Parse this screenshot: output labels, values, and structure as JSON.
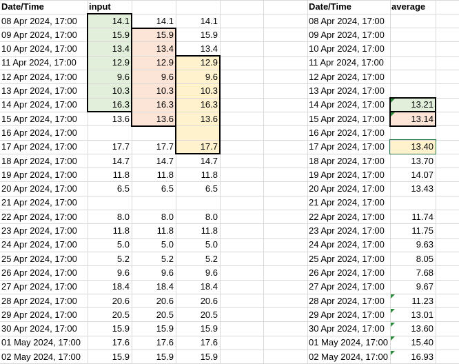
{
  "colors": {
    "green_fill": "#e2efda",
    "peach_fill": "#fce4d6",
    "yellow_fill": "#fff2cc",
    "selection_border": "#217346",
    "error_triangle": "#2e8b3d",
    "gridline": "#d9d9d9"
  },
  "headers": {
    "left_date": "Date/Time",
    "input": "input",
    "right_date": "Date/Time",
    "average": "average"
  },
  "rows": [
    {
      "date": "08 Apr 2024, 17:00",
      "a": "14.1",
      "b": "14.1",
      "c": "14.1",
      "avg": ""
    },
    {
      "date": "09 Apr 2024, 17:00",
      "a": "15.9",
      "b": "15.9",
      "c": "15.9",
      "avg": ""
    },
    {
      "date": "10 Apr 2024, 17:00",
      "a": "13.4",
      "b": "13.4",
      "c": "13.4",
      "avg": ""
    },
    {
      "date": "11 Apr 2024, 17:00",
      "a": "12.9",
      "b": "12.9",
      "c": "12.9",
      "avg": ""
    },
    {
      "date": "12 Apr 2024, 17:00",
      "a": "9.6",
      "b": "9.6",
      "c": "9.6",
      "avg": ""
    },
    {
      "date": "13 Apr 2024, 17:00",
      "a": "10.3",
      "b": "10.3",
      "c": "10.3",
      "avg": ""
    },
    {
      "date": "14 Apr 2024, 17:00",
      "a": "16.3",
      "b": "16.3",
      "c": "16.3",
      "avg": "13.21"
    },
    {
      "date": "15 Apr 2024, 17:00",
      "a": "13.6",
      "b": "13.6",
      "c": "13.6",
      "avg": "13.14"
    },
    {
      "date": "16 Apr 2024, 17:00",
      "a": "",
      "b": "",
      "c": "",
      "avg": ""
    },
    {
      "date": "17 Apr 2024, 17:00",
      "a": "17.7",
      "b": "17.7",
      "c": "17.7",
      "avg": "13.40"
    },
    {
      "date": "18 Apr 2024, 17:00",
      "a": "14.7",
      "b": "14.7",
      "c": "14.7",
      "avg": "13.70"
    },
    {
      "date": "19 Apr 2024, 17:00",
      "a": "11.8",
      "b": "11.8",
      "c": "11.8",
      "avg": "14.07"
    },
    {
      "date": "20 Apr 2024, 17:00",
      "a": "6.5",
      "b": "6.5",
      "c": "6.5",
      "avg": "13.43"
    },
    {
      "date": "21 Apr 2024, 17:00",
      "a": "",
      "b": "",
      "c": "",
      "avg": ""
    },
    {
      "date": "22 Apr 2024, 17:00",
      "a": "8.0",
      "b": "8.0",
      "c": "8.0",
      "avg": "11.74"
    },
    {
      "date": "23 Apr 2024, 17:00",
      "a": "11.8",
      "b": "11.8",
      "c": "11.8",
      "avg": "11.75"
    },
    {
      "date": "24 Apr 2024, 17:00",
      "a": "5.0",
      "b": "5.0",
      "c": "5.0",
      "avg": "9.63"
    },
    {
      "date": "25 Apr 2024, 17:00",
      "a": "5.2",
      "b": "5.2",
      "c": "5.2",
      "avg": "8.05"
    },
    {
      "date": "26 Apr 2024, 17:00",
      "a": "9.6",
      "b": "9.6",
      "c": "9.6",
      "avg": "7.68"
    },
    {
      "date": "27 Apr 2024, 17:00",
      "a": "18.4",
      "b": "18.4",
      "c": "18.4",
      "avg": "9.67"
    },
    {
      "date": "28 Apr 2024, 17:00",
      "a": "20.6",
      "b": "20.6",
      "c": "20.6",
      "avg": "11.23"
    },
    {
      "date": "29 Apr 2024, 17:00",
      "a": "20.5",
      "b": "20.5",
      "c": "20.5",
      "avg": "13.01"
    },
    {
      "date": "30 Apr 2024, 17:00",
      "a": "15.9",
      "b": "15.9",
      "c": "15.9",
      "avg": "13.60"
    },
    {
      "date": "01 May 2024, 17:00",
      "a": "17.6",
      "b": "17.6",
      "c": "17.6",
      "avg": "15.40"
    },
    {
      "date": "02 May 2024, 17:00",
      "a": "15.9",
      "b": "15.9",
      "c": "15.9",
      "avg": "16.93"
    }
  ]
}
